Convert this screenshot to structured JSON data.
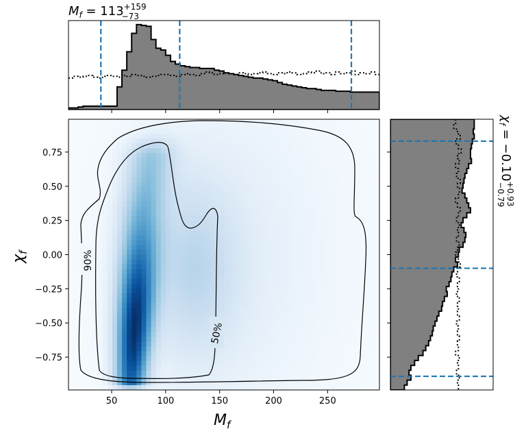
{
  "chart_data": {
    "type": "corner-plot",
    "title_mf": {
      "base": "M",
      "sub": "f",
      "eq": " = 113",
      "sup": "+159",
      "subv": "−73"
    },
    "title_chi": {
      "base": "χ",
      "sub": "f",
      "eq": " = −0.10",
      "sup": "+0.93",
      "subv": "−0.79"
    },
    "xlabel": {
      "base": "M",
      "sub": "f"
    },
    "ylabel": {
      "base": "χ",
      "sub": "f"
    },
    "xlim": [
      10,
      298
    ],
    "ylim": [
      -0.99,
      0.99
    ],
    "xticks": [
      50,
      100,
      150,
      200,
      250
    ],
    "xtick_labels": [
      "50",
      "100",
      "150",
      "200",
      "250"
    ],
    "yticks": [
      0.75,
      0.5,
      0.25,
      0.0,
      -0.25,
      -0.5,
      -0.75
    ],
    "ytick_labels": [
      "0.75",
      "0.50",
      "0.25",
      "0.00",
      "−0.25",
      "−0.50",
      "−0.75"
    ],
    "mf_quantiles": [
      40,
      113,
      272
    ],
    "chi_quantiles": [
      0.83,
      -0.1,
      -0.89
    ],
    "contour_labels": [
      "90%",
      "50%"
    ],
    "mf_hist": {
      "bin_width": 4.5,
      "values": [
        0.02,
        0.02,
        0.03,
        0.04,
        0.04,
        0.04,
        0.04,
        0.04,
        0.04,
        0.04,
        0.26,
        0.45,
        0.66,
        0.87,
        0.97,
        0.96,
        0.95,
        0.8,
        0.7,
        0.68,
        0.62,
        0.55,
        0.52,
        0.5,
        0.49,
        0.48,
        0.48,
        0.47,
        0.47,
        0.47,
        0.45,
        0.44,
        0.42,
        0.41,
        0.4,
        0.39,
        0.38,
        0.37,
        0.36,
        0.36,
        0.35,
        0.34,
        0.33,
        0.31,
        0.29,
        0.28,
        0.27,
        0.26,
        0.25,
        0.24,
        0.24,
        0.23,
        0.22,
        0.22,
        0.22,
        0.21,
        0.21,
        0.21,
        0.2,
        0.2,
        0.2,
        0.2,
        0.2,
        0.2
      ]
    },
    "mf_prior": [
      0.36,
      0.38,
      0.37,
      0.38,
      0.39,
      0.37,
      0.36,
      0.38,
      0.39,
      0.38,
      0.37,
      0.39,
      0.38,
      0.4,
      0.39,
      0.38,
      0.37,
      0.38,
      0.39,
      0.4,
      0.4,
      0.39,
      0.38,
      0.4,
      0.41,
      0.4,
      0.39,
      0.41,
      0.43,
      0.42,
      0.4,
      0.41,
      0.42,
      0.41,
      0.4,
      0.42,
      0.41,
      0.4,
      0.41,
      0.42,
      0.43,
      0.41,
      0.4,
      0.42,
      0.41,
      0.43,
      0.42,
      0.4,
      0.41,
      0.43,
      0.42,
      0.44,
      0.41,
      0.42,
      0.4,
      0.43,
      0.41,
      0.42,
      0.44,
      0.4,
      0.42,
      0.41,
      0.43,
      0.4
    ],
    "chi_hist": {
      "bin_width": 0.036,
      "values": [
        0.9,
        0.9,
        0.89,
        0.9,
        0.88,
        0.87,
        0.86,
        0.86,
        0.87,
        0.84,
        0.82,
        0.8,
        0.79,
        0.78,
        0.77,
        0.8,
        0.82,
        0.84,
        0.86,
        0.82,
        0.78,
        0.76,
        0.79,
        0.81,
        0.8,
        0.78,
        0.74,
        0.73,
        0.7,
        0.72,
        0.68,
        0.66,
        0.65,
        0.63,
        0.6,
        0.61,
        0.58,
        0.56,
        0.55,
        0.52,
        0.5,
        0.48,
        0.46,
        0.45,
        0.43,
        0.41,
        0.38,
        0.35,
        0.3,
        0.26,
        0.22,
        0.2,
        0.22,
        0.18,
        0.15
      ]
    },
    "chi_prior": [
      0.7,
      0.68,
      0.72,
      0.75,
      0.7,
      0.73,
      0.76,
      0.72,
      0.74,
      0.7,
      0.73,
      0.71,
      0.75,
      0.72,
      0.74,
      0.73,
      0.7,
      0.72,
      0.75,
      0.73,
      0.71,
      0.74,
      0.72,
      0.73,
      0.71,
      0.74,
      0.72,
      0.7,
      0.73,
      0.75,
      0.72,
      0.71,
      0.74,
      0.72,
      0.73,
      0.71,
      0.74,
      0.72,
      0.73,
      0.72,
      0.74,
      0.71,
      0.73,
      0.72,
      0.74,
      0.72,
      0.73,
      0.7,
      0.74,
      0.72,
      0.73,
      0.71,
      0.74,
      0.72,
      0.73
    ]
  }
}
